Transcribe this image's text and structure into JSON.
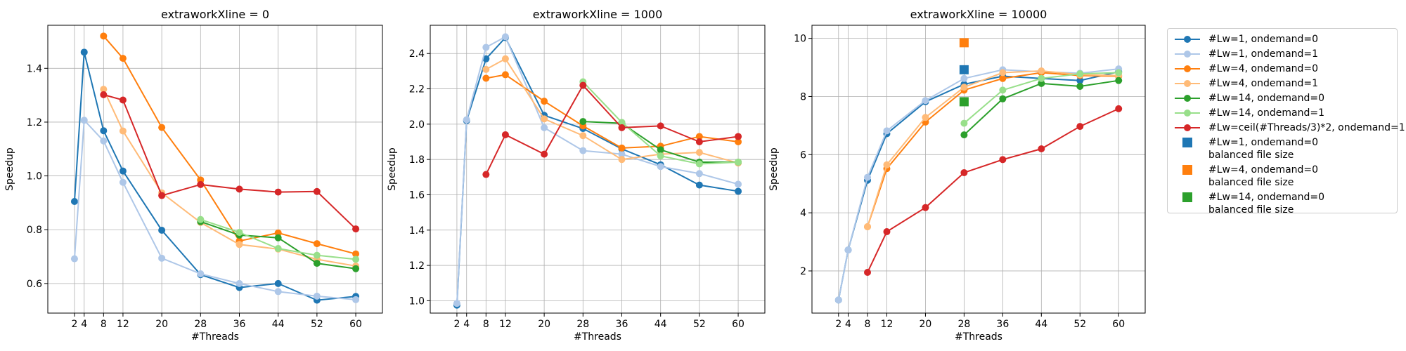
{
  "chart_data": [
    {
      "type": "line",
      "title": "extraworkXline = 0",
      "xlabel": "#Threads",
      "ylabel": "Speedup",
      "xticks": [
        2,
        4,
        8,
        12,
        20,
        28,
        36,
        44,
        52,
        60
      ],
      "xlim": [
        -3.5,
        65.5
      ],
      "ylim": [
        0.49,
        1.56
      ],
      "yticks": [
        0.6,
        0.8,
        1.0,
        1.2,
        1.4
      ],
      "ytick_labels": [
        "0.6",
        "0.8",
        "1.0",
        "1.2",
        "1.4"
      ],
      "grid": true,
      "series": [
        {
          "name": "#Lw=1, ondemand=0",
          "color": "#1f77b4",
          "x": [
            2,
            4,
            8,
            12,
            20,
            28,
            36,
            44,
            52,
            60
          ],
          "y": [
            0.905,
            1.46,
            1.168,
            1.018,
            0.798,
            0.633,
            0.585,
            0.6,
            0.538,
            0.552
          ]
        },
        {
          "name": "#Lw=1, ondemand=1",
          "color": "#aec7e8",
          "x": [
            2,
            4,
            8,
            12,
            20,
            28,
            36,
            44,
            52,
            60
          ],
          "y": [
            0.692,
            1.207,
            1.13,
            0.976,
            0.694,
            0.636,
            0.6,
            0.57,
            0.553,
            0.54
          ]
        },
        {
          "name": "#Lw=4, ondemand=0",
          "color": "#ff7f0e",
          "x": [
            8,
            12,
            20,
            28,
            36,
            44,
            52,
            60
          ],
          "y": [
            1.52,
            1.437,
            1.18,
            0.985,
            0.758,
            0.788,
            0.748,
            0.71
          ]
        },
        {
          "name": "#Lw=4, ondemand=1",
          "color": "#ffbb78",
          "x": [
            8,
            12,
            20,
            28,
            36,
            44,
            52,
            60
          ],
          "y": [
            1.322,
            1.167,
            0.937,
            0.827,
            0.745,
            0.728,
            0.69,
            0.665
          ]
        },
        {
          "name": "#Lw=14, ondemand=0",
          "color": "#2ca02c",
          "x": [
            28,
            36,
            44,
            52,
            60
          ],
          "y": [
            0.83,
            0.78,
            0.77,
            0.675,
            0.655
          ]
        },
        {
          "name": "#Lw=14, ondemand=1",
          "color": "#98df8a",
          "x": [
            28,
            36,
            44,
            52,
            60
          ],
          "y": [
            0.838,
            0.79,
            0.73,
            0.705,
            0.69
          ]
        },
        {
          "name": "#Lw=ceil(#Threads/3)*2, ondemand=1",
          "color": "#d62728",
          "x": [
            8,
            12,
            20,
            28,
            36,
            44,
            52,
            60
          ],
          "y": [
            1.302,
            1.282,
            0.927,
            0.968,
            0.951,
            0.94,
            0.942,
            0.803
          ]
        }
      ],
      "markers": []
    },
    {
      "type": "line",
      "title": "extraworkXline = 1000",
      "xlabel": "#Threads",
      "ylabel": "Speedup",
      "xticks": [
        2,
        4,
        8,
        12,
        20,
        28,
        36,
        44,
        52,
        60
      ],
      "xlim": [
        -3.5,
        65.5
      ],
      "ylim": [
        0.93,
        2.56
      ],
      "yticks": [
        1.0,
        1.2,
        1.4,
        1.6,
        1.8,
        2.0,
        2.2,
        2.4
      ],
      "ytick_labels": [
        "1.0",
        "1.2",
        "1.4",
        "1.6",
        "1.8",
        "2.0",
        "2.2",
        "2.4"
      ],
      "grid": true,
      "series": [
        {
          "name": "#Lw=1, ondemand=0",
          "color": "#1f77b4",
          "x": [
            2,
            4,
            8,
            12,
            20,
            28,
            36,
            44,
            52,
            60
          ],
          "y": [
            0.975,
            2.02,
            2.37,
            2.49,
            2.05,
            1.975,
            1.86,
            1.77,
            1.655,
            1.62
          ]
        },
        {
          "name": "#Lw=1, ondemand=1",
          "color": "#aec7e8",
          "x": [
            2,
            4,
            8,
            12,
            20,
            28,
            36,
            44,
            52,
            60
          ],
          "y": [
            0.985,
            2.025,
            2.435,
            2.495,
            1.98,
            1.85,
            1.83,
            1.76,
            1.72,
            1.66
          ]
        },
        {
          "name": "#Lw=4, ondemand=0",
          "color": "#ff7f0e",
          "x": [
            8,
            12,
            20,
            28,
            36,
            44,
            52,
            60
          ],
          "y": [
            2.26,
            2.28,
            2.13,
            1.99,
            1.865,
            1.875,
            1.93,
            1.9
          ]
        },
        {
          "name": "#Lw=4, ondemand=1",
          "color": "#ffbb78",
          "x": [
            8,
            12,
            20,
            28,
            36,
            44,
            52,
            60
          ],
          "y": [
            2.31,
            2.37,
            2.03,
            1.935,
            1.8,
            1.83,
            1.84,
            1.78
          ]
        },
        {
          "name": "#Lw=14, ondemand=0",
          "color": "#2ca02c",
          "x": [
            28,
            36,
            44,
            52,
            60
          ],
          "y": [
            2.015,
            2.005,
            1.855,
            1.785,
            1.785
          ]
        },
        {
          "name": "#Lw=14, ondemand=1",
          "color": "#98df8a",
          "x": [
            28,
            36,
            44,
            52,
            60
          ],
          "y": [
            2.24,
            2.01,
            1.82,
            1.775,
            1.785
          ]
        },
        {
          "name": "#Lw=ceil(#Threads/3)*2, ondemand=1",
          "color": "#d62728",
          "x": [
            8,
            12,
            20,
            28,
            36,
            44,
            52,
            60
          ],
          "y": [
            1.715,
            1.94,
            1.83,
            2.22,
            1.98,
            1.99,
            1.9,
            1.93
          ]
        }
      ],
      "markers": []
    },
    {
      "type": "line",
      "title": "extraworkXline = 10000",
      "xlabel": "#Threads",
      "ylabel": "Speedup",
      "xticks": [
        2,
        4,
        8,
        12,
        20,
        28,
        36,
        44,
        52,
        60
      ],
      "xlim": [
        -3.5,
        65.5
      ],
      "ylim": [
        0.55,
        10.45
      ],
      "yticks": [
        2,
        4,
        6,
        8,
        10
      ],
      "ytick_labels": [
        "2",
        "4",
        "6",
        "8",
        "10"
      ],
      "grid": true,
      "series": [
        {
          "name": "#Lw=1, ondemand=0",
          "color": "#1f77b4",
          "x": [
            2,
            4,
            8,
            12,
            20,
            28,
            36,
            44,
            52,
            60
          ],
          "y": [
            1.0,
            2.72,
            5.12,
            6.72,
            7.82,
            8.42,
            8.7,
            8.62,
            8.55,
            8.85
          ]
        },
        {
          "name": "#Lw=1, ondemand=1",
          "color": "#aec7e8",
          "x": [
            2,
            4,
            8,
            12,
            20,
            28,
            36,
            44,
            52,
            60
          ],
          "y": [
            1.0,
            2.72,
            5.22,
            6.82,
            7.86,
            8.62,
            8.92,
            8.85,
            8.8,
            8.95
          ]
        },
        {
          "name": "#Lw=4, ondemand=0",
          "color": "#ff7f0e",
          "x": [
            8,
            12,
            20,
            28,
            36,
            44,
            52,
            60
          ],
          "y": [
            3.52,
            5.52,
            7.12,
            8.22,
            8.62,
            8.82,
            8.72,
            8.7
          ]
        },
        {
          "name": "#Lw=4, ondemand=1",
          "color": "#ffbb78",
          "x": [
            8,
            12,
            20,
            28,
            36,
            44,
            52,
            60
          ],
          "y": [
            3.52,
            5.65,
            7.28,
            8.32,
            8.82,
            8.88,
            8.75,
            8.72
          ]
        },
        {
          "name": "#Lw=14, ondemand=0",
          "color": "#2ca02c",
          "x": [
            28,
            36,
            44,
            52,
            60
          ],
          "y": [
            6.68,
            7.92,
            8.45,
            8.35,
            8.55
          ]
        },
        {
          "name": "#Lw=14, ondemand=1",
          "color": "#98df8a",
          "x": [
            28,
            36,
            44,
            52,
            60
          ],
          "y": [
            7.08,
            8.22,
            8.62,
            8.78,
            8.82
          ]
        },
        {
          "name": "#Lw=ceil(#Threads/3)*2, ondemand=1",
          "color": "#d62728",
          "x": [
            8,
            12,
            20,
            28,
            36,
            44,
            52,
            60
          ],
          "y": [
            1.95,
            3.35,
            4.18,
            5.38,
            5.83,
            6.2,
            6.97,
            7.58
          ]
        }
      ],
      "markers": [
        {
          "name": "#Lw=1, ondemand=0 balanced file size",
          "color": "#1f77b4",
          "x": 28,
          "y": 8.92
        },
        {
          "name": "#Lw=4, ondemand=0 balanced file size",
          "color": "#ff7f0e",
          "x": 28,
          "y": 9.85
        },
        {
          "name": "#Lw=14, ondemand=0 balanced file size",
          "color": "#2ca02c",
          "x": 28,
          "y": 7.82
        }
      ]
    }
  ],
  "legend": {
    "placement": "right",
    "items": [
      {
        "label": "#Lw=1, ondemand=0",
        "color": "#1f77b4",
        "kind": "line"
      },
      {
        "label": "#Lw=1, ondemand=1",
        "color": "#aec7e8",
        "kind": "line"
      },
      {
        "label": "#Lw=4, ondemand=0",
        "color": "#ff7f0e",
        "kind": "line"
      },
      {
        "label": "#Lw=4, ondemand=1",
        "color": "#ffbb78",
        "kind": "line"
      },
      {
        "label": "#Lw=14, ondemand=0",
        "color": "#2ca02c",
        "kind": "line"
      },
      {
        "label": "#Lw=14, ondemand=1",
        "color": "#98df8a",
        "kind": "line"
      },
      {
        "label": "#Lw=ceil(#Threads/3)*2, ondemand=1",
        "color": "#d62728",
        "kind": "line"
      },
      {
        "label": "#Lw=1, ondemand=0",
        "label2": "balanced file size",
        "color": "#1f77b4",
        "kind": "square"
      },
      {
        "label": "#Lw=4, ondemand=0",
        "label2": "balanced file size",
        "color": "#ff7f0e",
        "kind": "square"
      },
      {
        "label": "#Lw=14, ondemand=0",
        "label2": "balanced file size",
        "color": "#2ca02c",
        "kind": "square"
      }
    ]
  }
}
